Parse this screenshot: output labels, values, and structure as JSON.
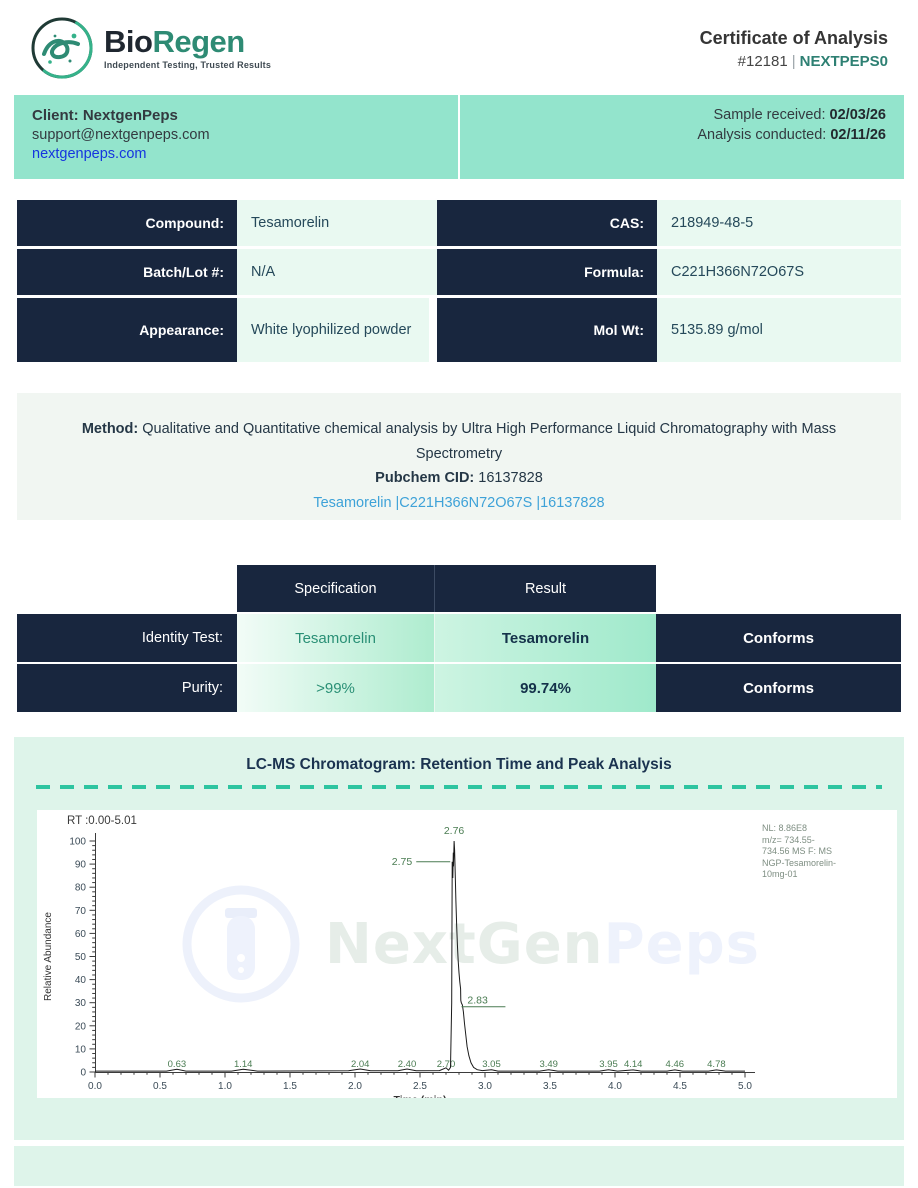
{
  "header": {
    "brand_bio": "Bio",
    "brand_regen": "Regen",
    "tagline": "Independent Testing, Trusted Results",
    "title": "Certificate of Analysis",
    "cert_number": "#12181",
    "separator": "|",
    "client_code": "NEXTPEPS0"
  },
  "client_bar": {
    "client_name": "Client: NextgenPeps",
    "email": "support@nextgenpeps.com",
    "website": "nextgenpeps.com",
    "received_label": "Sample received: ",
    "received_date": "02/03/26",
    "conducted_label": "Analysis conducted: ",
    "conducted_date": "02/11/26"
  },
  "compound_table": {
    "rows": [
      {
        "label1": "Compound:",
        "value1": "Tesamorelin",
        "label2": "CAS:",
        "value2": "218949-48-5"
      },
      {
        "label1": "Batch/Lot #:",
        "value1": "N/A",
        "label2": "Formula:",
        "value2": "C221H366N72O67S"
      },
      {
        "label1": "Appearance:",
        "value1": "White lyophilized powder",
        "label2": "Mol Wt:",
        "value2": "5135.89 g/mol"
      }
    ]
  },
  "method": {
    "label": "Method: ",
    "text": "Qualitative and Quantitative chemical analysis by Ultra High Performance Liquid Chromatography with Mass Spectrometry",
    "cid_label": "Pubchem CID: ",
    "cid": "16137828",
    "link": "Tesamorelin |C221H366N72O67S |16137828"
  },
  "results_table": {
    "col_headers": [
      "Specification",
      "Result"
    ],
    "rows": [
      {
        "label": "Identity Test:",
        "spec": "Tesamorelin",
        "result": "Tesamorelin",
        "status": "Conforms"
      },
      {
        "label": "Purity:",
        "spec": ">99%",
        "result": "99.74%",
        "status": "Conforms"
      }
    ]
  },
  "chromatogram": {
    "title": "LC-MS Chromatogram: Retention Time and Peak Analysis",
    "rt_range": "RT :0.00-5.01",
    "watermark_part1": "NextGen",
    "watermark_part2": "Peps",
    "annotation_lines": [
      "NL: 8.86E8",
      "m/z= 734.55-",
      "734.56 MS F: MS",
      "NGP-Tesamorelin-",
      "10mg-01"
    ]
  },
  "chart_data": {
    "type": "line",
    "title": "LC-MS Chromatogram: Retention Time and Peak Analysis",
    "xlabel": "Time (min)",
    "ylabel": "Relative Abundance",
    "xlim": [
      0,
      5
    ],
    "ylim": [
      0,
      100
    ],
    "x_major": 0.5,
    "x_minor": 0.1,
    "y_major": 10,
    "y_minor": 2,
    "grid": false,
    "main_peak_retention_time": 2.76,
    "main_peak_abundance": 100,
    "peak_labels": [
      {
        "text": "2.76",
        "t": 2.762,
        "v": 100,
        "pos": "above"
      },
      {
        "text": "2.75",
        "t": 2.748,
        "v": 91,
        "pos": "left-line"
      },
      {
        "text": "2.83",
        "t": 2.834,
        "v": 30,
        "pos": "right-line"
      }
    ],
    "baseline_peaks": [
      0.63,
      1.14,
      2.04,
      2.4,
      2.7,
      3.05,
      3.49,
      3.95,
      4.14,
      4.46,
      4.78
    ],
    "trace": [
      [
        0,
        0.4
      ],
      [
        0.55,
        0.4
      ],
      [
        0.63,
        1.2
      ],
      [
        0.7,
        0.4
      ],
      [
        1.05,
        0.4
      ],
      [
        1.14,
        1.2
      ],
      [
        1.25,
        0.4
      ],
      [
        1.95,
        0.5
      ],
      [
        2.04,
        1.3
      ],
      [
        2.12,
        0.5
      ],
      [
        2.33,
        0.5
      ],
      [
        2.4,
        1.3
      ],
      [
        2.47,
        0.5
      ],
      [
        2.65,
        0.6
      ],
      [
        2.7,
        1.8
      ],
      [
        2.72,
        0.8
      ],
      [
        2.735,
        2
      ],
      [
        2.744,
        30
      ],
      [
        2.748,
        91
      ],
      [
        2.752,
        84
      ],
      [
        2.756,
        95
      ],
      [
        2.758,
        89
      ],
      [
        2.762,
        100
      ],
      [
        2.766,
        96
      ],
      [
        2.77,
        88
      ],
      [
        2.776,
        74
      ],
      [
        2.782,
        63
      ],
      [
        2.788,
        55
      ],
      [
        2.794,
        48
      ],
      [
        2.8,
        43
      ],
      [
        2.806,
        39
      ],
      [
        2.812,
        36
      ],
      [
        2.814,
        31
      ],
      [
        2.818,
        30
      ],
      [
        2.826,
        29
      ],
      [
        2.834,
        26
      ],
      [
        2.842,
        21
      ],
      [
        2.852,
        16
      ],
      [
        2.862,
        11
      ],
      [
        2.876,
        7
      ],
      [
        2.892,
        4
      ],
      [
        2.912,
        2
      ],
      [
        2.94,
        1
      ],
      [
        2.98,
        0.6
      ],
      [
        3.05,
        1
      ],
      [
        3.1,
        0.4
      ],
      [
        3.42,
        0.4
      ],
      [
        3.49,
        1
      ],
      [
        3.56,
        0.4
      ],
      [
        3.88,
        0.4
      ],
      [
        3.95,
        1
      ],
      [
        4.02,
        0.4
      ],
      [
        4.14,
        0.9
      ],
      [
        4.2,
        0.4
      ],
      [
        4.4,
        0.4
      ],
      [
        4.46,
        0.9
      ],
      [
        4.52,
        0.4
      ],
      [
        4.72,
        0.4
      ],
      [
        4.78,
        0.9
      ],
      [
        4.85,
        0.4
      ],
      [
        5.0,
        0.4
      ]
    ],
    "colors": {
      "trace": "#1a1a1a",
      "labels": "#4a7c52",
      "axis": "#3b3b3b",
      "tick_text": "#3b4b57"
    }
  },
  "colors": {
    "navy": "#18263e",
    "mint_bar": "#93e4cc",
    "mint_light": "#e9f9f1",
    "card_mint": "#def4ea",
    "teal_accent": "#2e8073",
    "dashed_teal": "#2ec4a0",
    "link_blue": "#1535df",
    "pubchem_blue": "#3ea2d8"
  }
}
